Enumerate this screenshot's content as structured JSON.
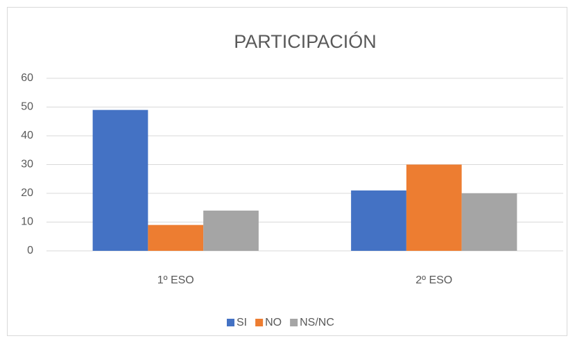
{
  "chart_data": {
    "type": "bar",
    "title": "PARTICIPACIÓN",
    "categories": [
      "1º ESO",
      "2º ESO"
    ],
    "series": [
      {
        "name": "SI",
        "color": "#4472c4",
        "values": [
          49,
          21
        ]
      },
      {
        "name": "NO",
        "color": "#ed7d31",
        "values": [
          9,
          30
        ]
      },
      {
        "name": "NS/NC",
        "color": "#a5a5a5",
        "values": [
          14,
          20
        ]
      }
    ],
    "ylim": [
      0,
      60
    ],
    "yticks": [
      0,
      10,
      20,
      30,
      40,
      50,
      60
    ],
    "grid": true,
    "legend": "bottom"
  }
}
